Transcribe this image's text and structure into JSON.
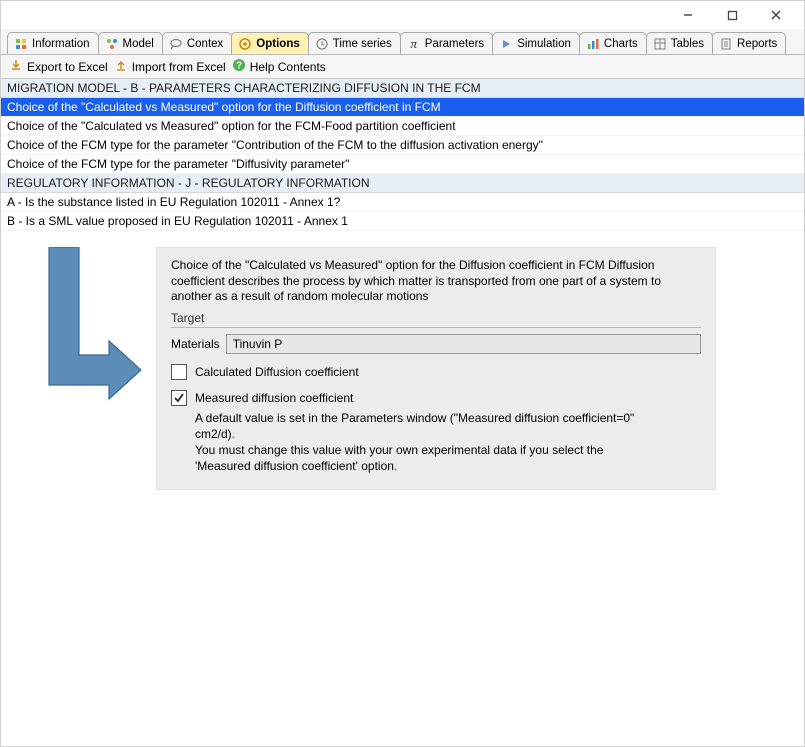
{
  "window": {
    "minimize": "—",
    "maximize": "☐",
    "close": "✕"
  },
  "tabs": [
    {
      "label": "Information",
      "active": false
    },
    {
      "label": "Model",
      "active": false
    },
    {
      "label": "Contex",
      "active": false
    },
    {
      "label": "Options",
      "active": true
    },
    {
      "label": "Time series",
      "active": false
    },
    {
      "label": "Parameters",
      "active": false
    },
    {
      "label": "Simulation",
      "active": false
    },
    {
      "label": "Charts",
      "active": false
    },
    {
      "label": "Tables",
      "active": false
    },
    {
      "label": "Reports",
      "active": false
    }
  ],
  "toolbar": {
    "export": "Export to Excel",
    "import": "Import from Excel",
    "help": "Help Contents"
  },
  "sections": [
    {
      "header": "MIGRATION MODEL - B - PARAMETERS CHARACTERIZING DIFFUSION IN THE FCM",
      "items": [
        {
          "text": "Choice of the \"Calculated vs Measured\" option for the Diffusion coefficient in FCM",
          "selected": true
        },
        {
          "text": "Choice of the \"Calculated vs Measured\" option for the FCM-Food partition coefficient",
          "selected": false
        },
        {
          "text": "Choice of the FCM type for the parameter \"Contribution of the FCM to the diffusion activation energy\"",
          "selected": false
        },
        {
          "text": "Choice of the FCM type for the parameter \"Diffusivity parameter\"",
          "selected": false
        }
      ]
    },
    {
      "header": "REGULATORY INFORMATION - J - REGULATORY INFORMATION",
      "items": [
        {
          "text": "A - Is the substance listed in EU Regulation 102011 - Annex 1?",
          "selected": false
        },
        {
          "text": "B - Is a SML value proposed in EU Regulation 102011 - Annex 1",
          "selected": false
        }
      ]
    }
  ],
  "panel": {
    "description": "Choice of the \"Calculated vs Measured\" option for the Diffusion coefficient in FCM Diffusion coefficient describes the process by which matter is transported from one part of a system to another as a result of random molecular motions",
    "target_label": "Target",
    "materials_label": "Materials",
    "materials_value": "Tinuvin P",
    "option1": "Calculated Diffusion coefficient",
    "option1_checked": false,
    "option2": "Measured diffusion coefficient",
    "option2_checked": true,
    "helptext": "A default value is set in the Parameters window (\"Measured diffusion coefficient=0\" cm2/d).\nYou must change this value with your own experimental data if you select the 'Measured diffusion coefficient' option."
  },
  "colors": {
    "selection": "#1a5fed",
    "section_header_bg": "#e7eef5",
    "panel_bg": "#ececec",
    "active_tab_bg": "#fff1b3",
    "arrow": "#5b8db8"
  }
}
